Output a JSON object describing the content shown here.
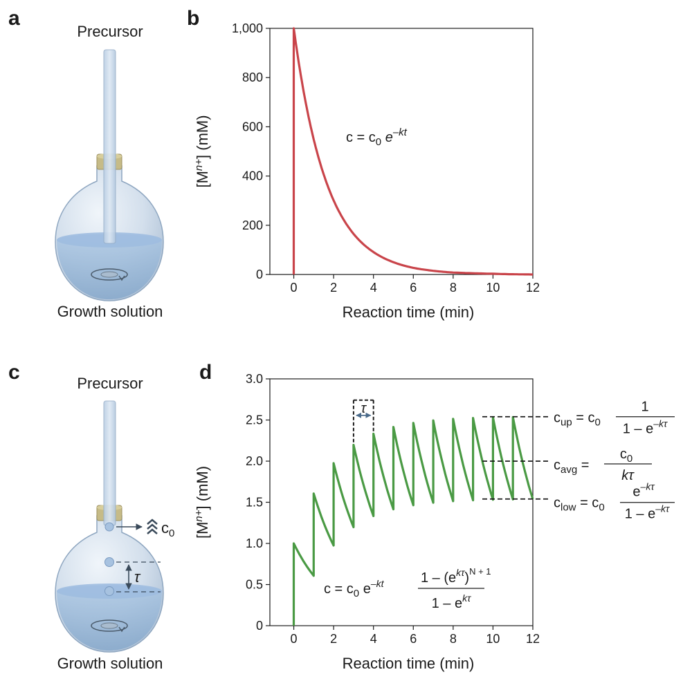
{
  "panels": {
    "a": {
      "letter": "a",
      "top": "Precursor",
      "bottom": "Growth solution"
    },
    "b": {
      "letter": "b"
    },
    "c": {
      "letter": "c",
      "top": "Precursor",
      "bottom": "Growth solution",
      "c0": "c",
      "c0_sub": "0",
      "tau": "τ"
    },
    "d": {
      "letter": "d"
    }
  },
  "colors": {
    "red": "#c9444a",
    "green": "#4a9a44",
    "glass": "#cfdce9",
    "liquid": "#8fb3d6",
    "cork": "#b8ad7a"
  },
  "icons": {
    "stir": "stir-arrow-icon",
    "chevrons": "double-chevron-up-icon",
    "arrow": "double-headed-arrow-icon"
  },
  "chart_data": [
    {
      "type": "line",
      "panel": "b",
      "xlabel": "Reaction time (min)",
      "ylabel": "[Mn+] (mM)",
      "ylabel_parts": {
        "pre": "[M",
        "sup": "n+",
        "post": "] (mM)"
      },
      "xlim": [
        -1.2,
        12
      ],
      "ylim": [
        0,
        1000
      ],
      "xticks": [
        0,
        2,
        4,
        6,
        8,
        10,
        12
      ],
      "yticks": [
        0,
        200,
        400,
        600,
        800,
        1000
      ],
      "ytick_labels": [
        "0",
        "200",
        "400",
        "600",
        "800",
        "1,000"
      ],
      "annotation": {
        "c": "c = c",
        "sub": "0",
        "e": "e",
        "sup": "–kt"
      },
      "series": [
        {
          "x": [
            0,
            0,
            0.5,
            1,
            1.5,
            2,
            2.5,
            3,
            4,
            5,
            6,
            7,
            8,
            9,
            10,
            11,
            12
          ],
          "y": [
            0,
            1000,
            741,
            549,
            407,
            301,
            223,
            165,
            91,
            50,
            27,
            15,
            8,
            5,
            3,
            1,
            0
          ]
        }
      ],
      "grid": false
    },
    {
      "type": "line",
      "panel": "d",
      "xlabel": "Reaction time (min)",
      "ylabel": "[Mn+] (mM)",
      "ylabel_parts": {
        "pre": "[M",
        "sup": "n+",
        "post": "] (mM)"
      },
      "xlim": [
        -1.2,
        12
      ],
      "ylim": [
        0,
        3.0
      ],
      "xticks": [
        0,
        2,
        4,
        6,
        8,
        10,
        12
      ],
      "yticks": [
        0,
        0.5,
        1.0,
        1.5,
        2.0,
        2.5,
        3.0
      ],
      "ytick_labels": [
        "0",
        "0.5",
        "1.0",
        "1.5",
        "2.0",
        "2.5",
        "3.0"
      ],
      "decay_k": 0.5,
      "interval_tau": 1,
      "c0": 1.0,
      "c_up": 2.54,
      "c_avg": 2.0,
      "c_low": 1.54,
      "tau_label": "τ",
      "equations": {
        "main": {
          "a": "c = c",
          "sub": "0",
          "e": " e",
          "sup": "–kt",
          "num": "1 – (e",
          "num_sup": "kτ",
          "num_post": ")",
          "num_sup2": "N + 1",
          "den": "1 – e",
          "den_sup": "kτ"
        },
        "up": {
          "lhs": "c",
          "lhs_sub": "up",
          "mid": " = c",
          "mid_sub": "0",
          "num": "1",
          "den": "1 – e",
          "den_sup": "–kτ"
        },
        "avg": {
          "lhs": "c",
          "lhs_sub": "avg",
          "mid": " =",
          "num": "c",
          "num_sub": "0",
          "den": "kτ"
        },
        "low": {
          "lhs": "c",
          "lhs_sub": "low",
          "mid": " = c",
          "mid_sub": "0",
          "num": "e",
          "num_sup": "–kτ",
          "den": "1 – e",
          "den_sup": "–kτ"
        }
      },
      "grid": false
    }
  ]
}
